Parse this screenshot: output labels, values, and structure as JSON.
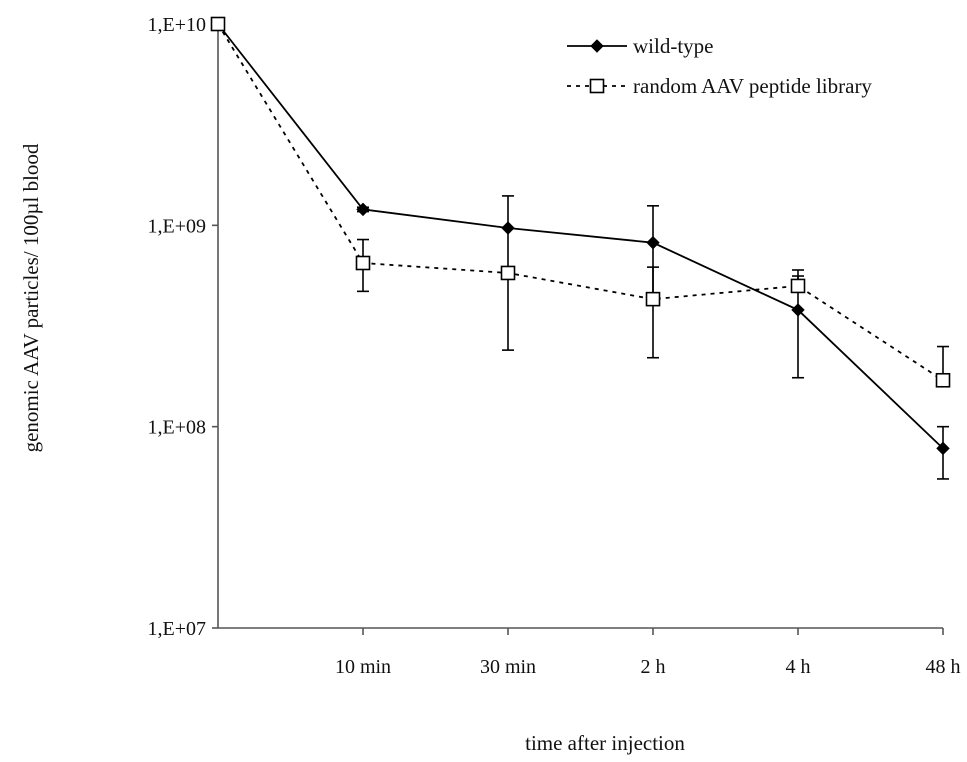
{
  "chart_data": {
    "type": "line",
    "xlabel": "time after injection",
    "ylabel": "genomic AAV particles/ 100µl blood",
    "y_scale": "log",
    "ylim": [
      10000000,
      10000000000
    ],
    "y_tick_values": [
      10000000,
      100000000,
      1000000000,
      10000000000
    ],
    "y_tick_labels": [
      "1,E+07",
      "1,E+08",
      "1,E+09",
      "1,E+10"
    ],
    "categories": [
      "",
      "10 min",
      "30 min",
      "2 h",
      "4 h",
      "48 h"
    ],
    "grid": false,
    "legend_position": "top-right",
    "series": [
      {
        "name": "wild-type",
        "line_style": "solid",
        "marker": "filled-diamond",
        "color": "#000000",
        "values": [
          10000000000,
          1200000000,
          970000000,
          820000000,
          380000000,
          78000000
        ],
        "error_upper": [
          10000000000,
          1230000000,
          1400000000,
          1250000000,
          560000000,
          100000000
        ],
        "error_lower": [
          10000000000,
          1170000000,
          240000000,
          220000000,
          175000000,
          55000000
        ]
      },
      {
        "name": "random AAV peptide library",
        "line_style": "dotted",
        "marker": "open-square",
        "color": "#000000",
        "values": [
          10000000000,
          650000000,
          580000000,
          430000000,
          500000000,
          170000000
        ],
        "error_upper": [
          10000000000,
          850000000,
          580000000,
          620000000,
          600000000,
          250000000
        ],
        "error_lower": [
          10000000000,
          470000000,
          580000000,
          430000000,
          500000000,
          170000000
        ]
      }
    ]
  }
}
